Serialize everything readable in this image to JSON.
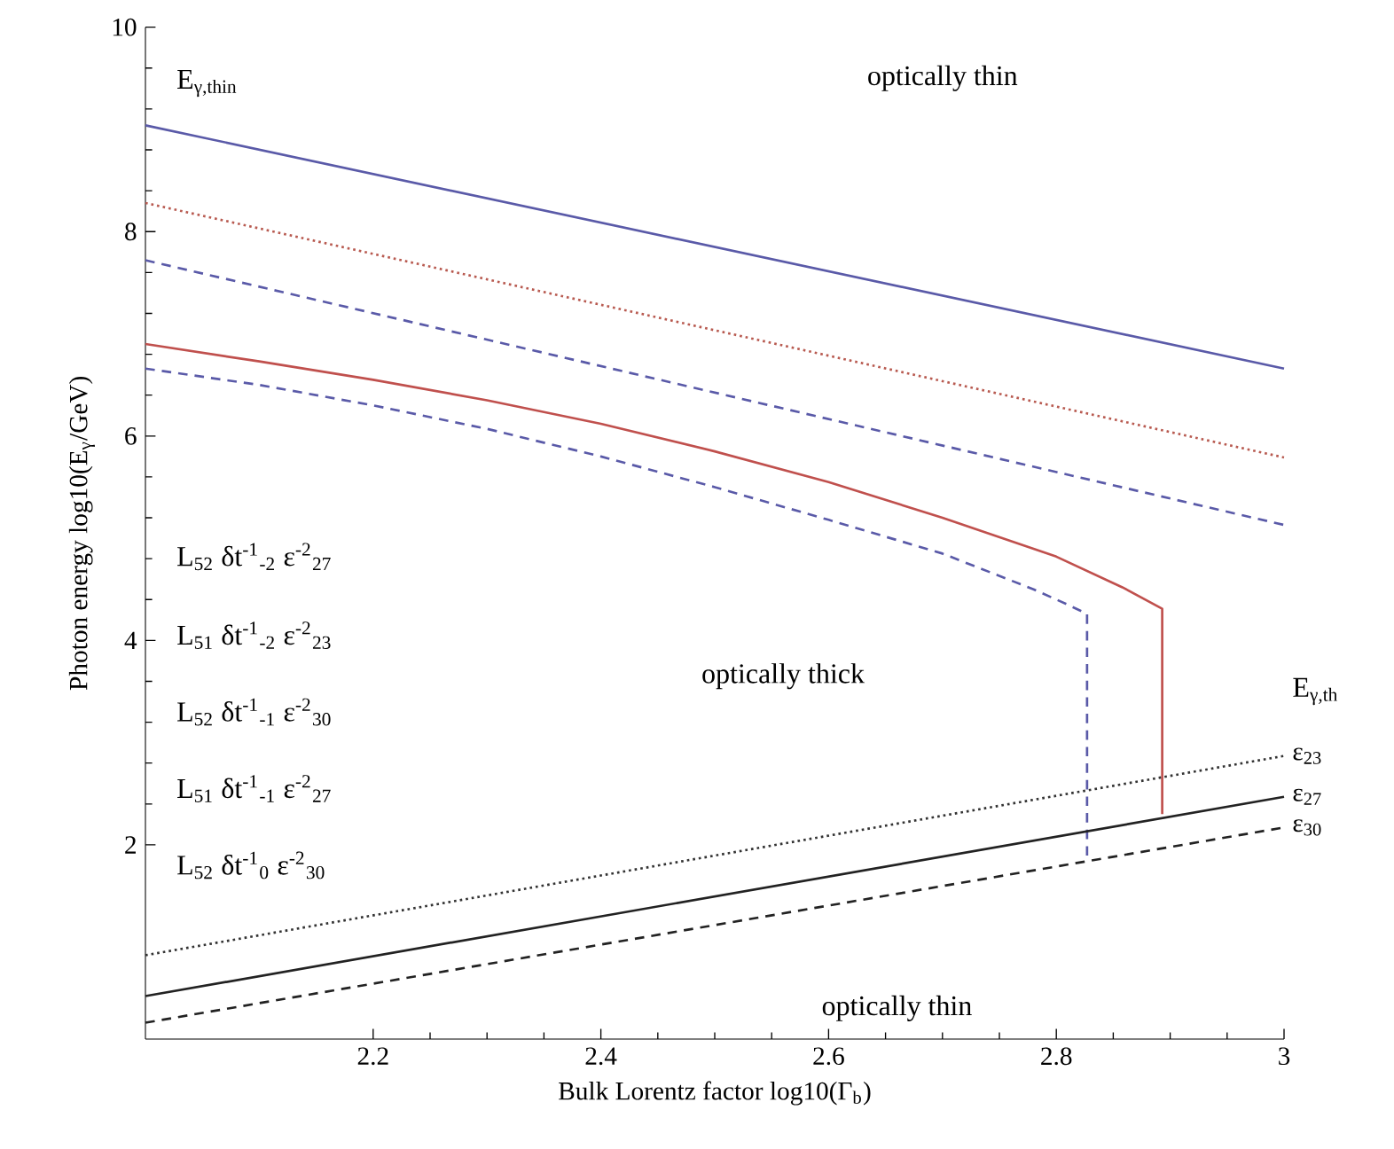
{
  "chart_data": {
    "type": "line",
    "xlabel": "Bulk Lorentz factor log10(Γ$_{b}$)",
    "ylabel": "Photon energy log10(E$_{γ}$/GeV)",
    "xlim": [
      2,
      3
    ],
    "ylim": [
      0.1,
      10
    ],
    "xticks": [
      2.2,
      2.4,
      2.6,
      2.8,
      3
    ],
    "yticks": [
      2,
      4,
      6,
      8,
      10
    ],
    "series": [
      {
        "color": "#5a5aa8",
        "line_style": "solid",
        "x": [
          2,
          3
        ],
        "values": [
          9.04,
          6.66
        ]
      },
      {
        "color": "#b85a50",
        "line_style": "dotted",
        "x": [
          2,
          3
        ],
        "values": [
          8.28,
          5.79
        ]
      },
      {
        "color": "#5a5aa8",
        "line_style": "dashed",
        "x": [
          2,
          3
        ],
        "values": [
          7.72,
          5.13
        ]
      },
      {
        "color": "#c0504d",
        "line_style": "solid",
        "x": [
          2,
          2.1,
          2.2,
          2.3,
          2.4,
          2.5,
          2.6,
          2.7,
          2.8,
          2.858,
          2.893,
          2.893
        ],
        "values": [
          6.9,
          6.73,
          6.55,
          6.35,
          6.12,
          5.85,
          5.55,
          5.2,
          4.82,
          4.52,
          4.31,
          2.3
        ]
      },
      {
        "color": "#5a5aa8",
        "line_style": "dashed",
        "x": [
          2,
          2.1,
          2.2,
          2.3,
          2.4,
          2.5,
          2.6,
          2.7,
          2.78,
          2.81,
          2.827,
          2.827
        ],
        "values": [
          6.66,
          6.5,
          6.3,
          6.07,
          5.8,
          5.5,
          5.18,
          4.85,
          4.5,
          4.35,
          4.26,
          1.86
        ]
      },
      {
        "name": "ε$_{23}$",
        "color": "#333333",
        "line_style": "dotted",
        "x": [
          2,
          3
        ],
        "values": [
          0.92,
          2.87
        ]
      },
      {
        "name": "ε$_{27}$",
        "color": "#222222",
        "line_style": "solid",
        "x": [
          2,
          3
        ],
        "values": [
          0.52,
          2.47
        ]
      },
      {
        "name": "ε$_{30}$",
        "color": "#222222",
        "line_style": "dashed",
        "x": [
          2,
          3
        ],
        "values": [
          0.26,
          2.17
        ]
      }
    ],
    "annotations": [
      "E$_{γ,thin}$",
      "optically thin",
      "optically thick",
      "optically thin",
      "E$_{γ,th}$",
      "L$_{52}$ δt$^{-1}$$_{-2}$ ε$^{-2}$$_{27}$",
      "L$_{51}$ δt$^{-1}$$_{-2}$ ε$^{-2}$$_{23}$",
      "L$_{52}$ δt$^{-1}$$_{-1}$ ε$^{-2}$$_{30}$",
      "L$_{51}$ δt$^{-1}$$_{-1}$ ε$^{-2}$$_{27}$",
      "L$_{52}$ δt$^{-1}$$_{0}$ ε$^{-2}$$_{30}$"
    ]
  }
}
